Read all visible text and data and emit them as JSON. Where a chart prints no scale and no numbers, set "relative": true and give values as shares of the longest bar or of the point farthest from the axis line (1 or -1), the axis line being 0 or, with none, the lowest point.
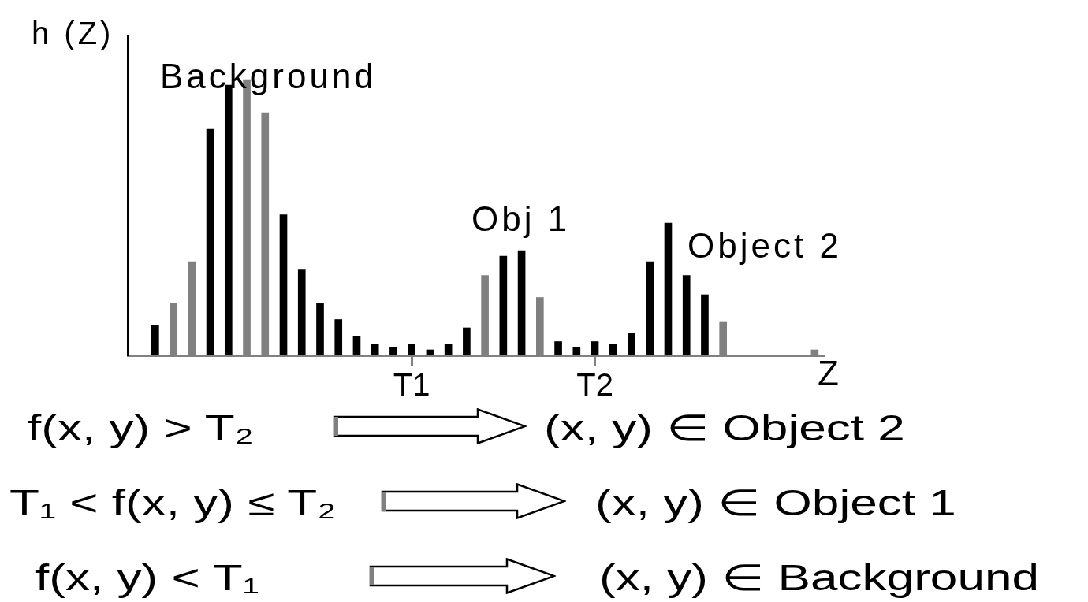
{
  "chart_data": {
    "type": "bar",
    "relative": true,
    "xlabel": "Z",
    "ylabel": "h (Z)",
    "categories": [
      null,
      null,
      null,
      null,
      null,
      null,
      null,
      null,
      null,
      null,
      null,
      null,
      null,
      null,
      null,
      "T1",
      null,
      null,
      null,
      null,
      null,
      null,
      null,
      null,
      null,
      "T2",
      null,
      null,
      null,
      null,
      null,
      null,
      null,
      null,
      null,
      null,
      null,
      null
    ],
    "values": [
      null,
      0.11,
      0.19,
      0.34,
      0.82,
      0.98,
      1.0,
      0.88,
      0.51,
      0.31,
      0.19,
      0.13,
      0.07,
      0.04,
      0.03,
      0.04,
      0.02,
      0.04,
      0.1,
      0.29,
      0.36,
      0.38,
      0.21,
      0.05,
      0.03,
      0.05,
      0.04,
      0.08,
      0.34,
      0.48,
      0.29,
      0.22,
      0.12,
      null,
      null,
      null,
      null,
      0.02
    ],
    "colors": [
      null,
      "#000000",
      "#808080",
      "#808080",
      "#000000",
      "#000000",
      "#808080",
      "#808080",
      "#000000",
      "#000000",
      "#000000",
      "#000000",
      "#000000",
      "#000000",
      "#000000",
      "#000000",
      "#000000",
      "#000000",
      "#000000",
      "#808080",
      "#000000",
      "#000000",
      "#808080",
      "#000000",
      "#000000",
      "#000000",
      "#000000",
      "#000000",
      "#000000",
      "#000000",
      "#000000",
      "#000000",
      "#808080",
      null,
      null,
      null,
      null,
      "#808080"
    ],
    "annotations": [
      "Background",
      "Obj 1",
      "Object 2",
      "f(x, y) > T₂",
      "(x, y) ∈ Object 2",
      "T₁ < f(x, y) ≤ T₂",
      "(x, y) ∈ Object 1",
      "f(x, y) < T₁",
      "(x, y) ∈ Background"
    ]
  }
}
